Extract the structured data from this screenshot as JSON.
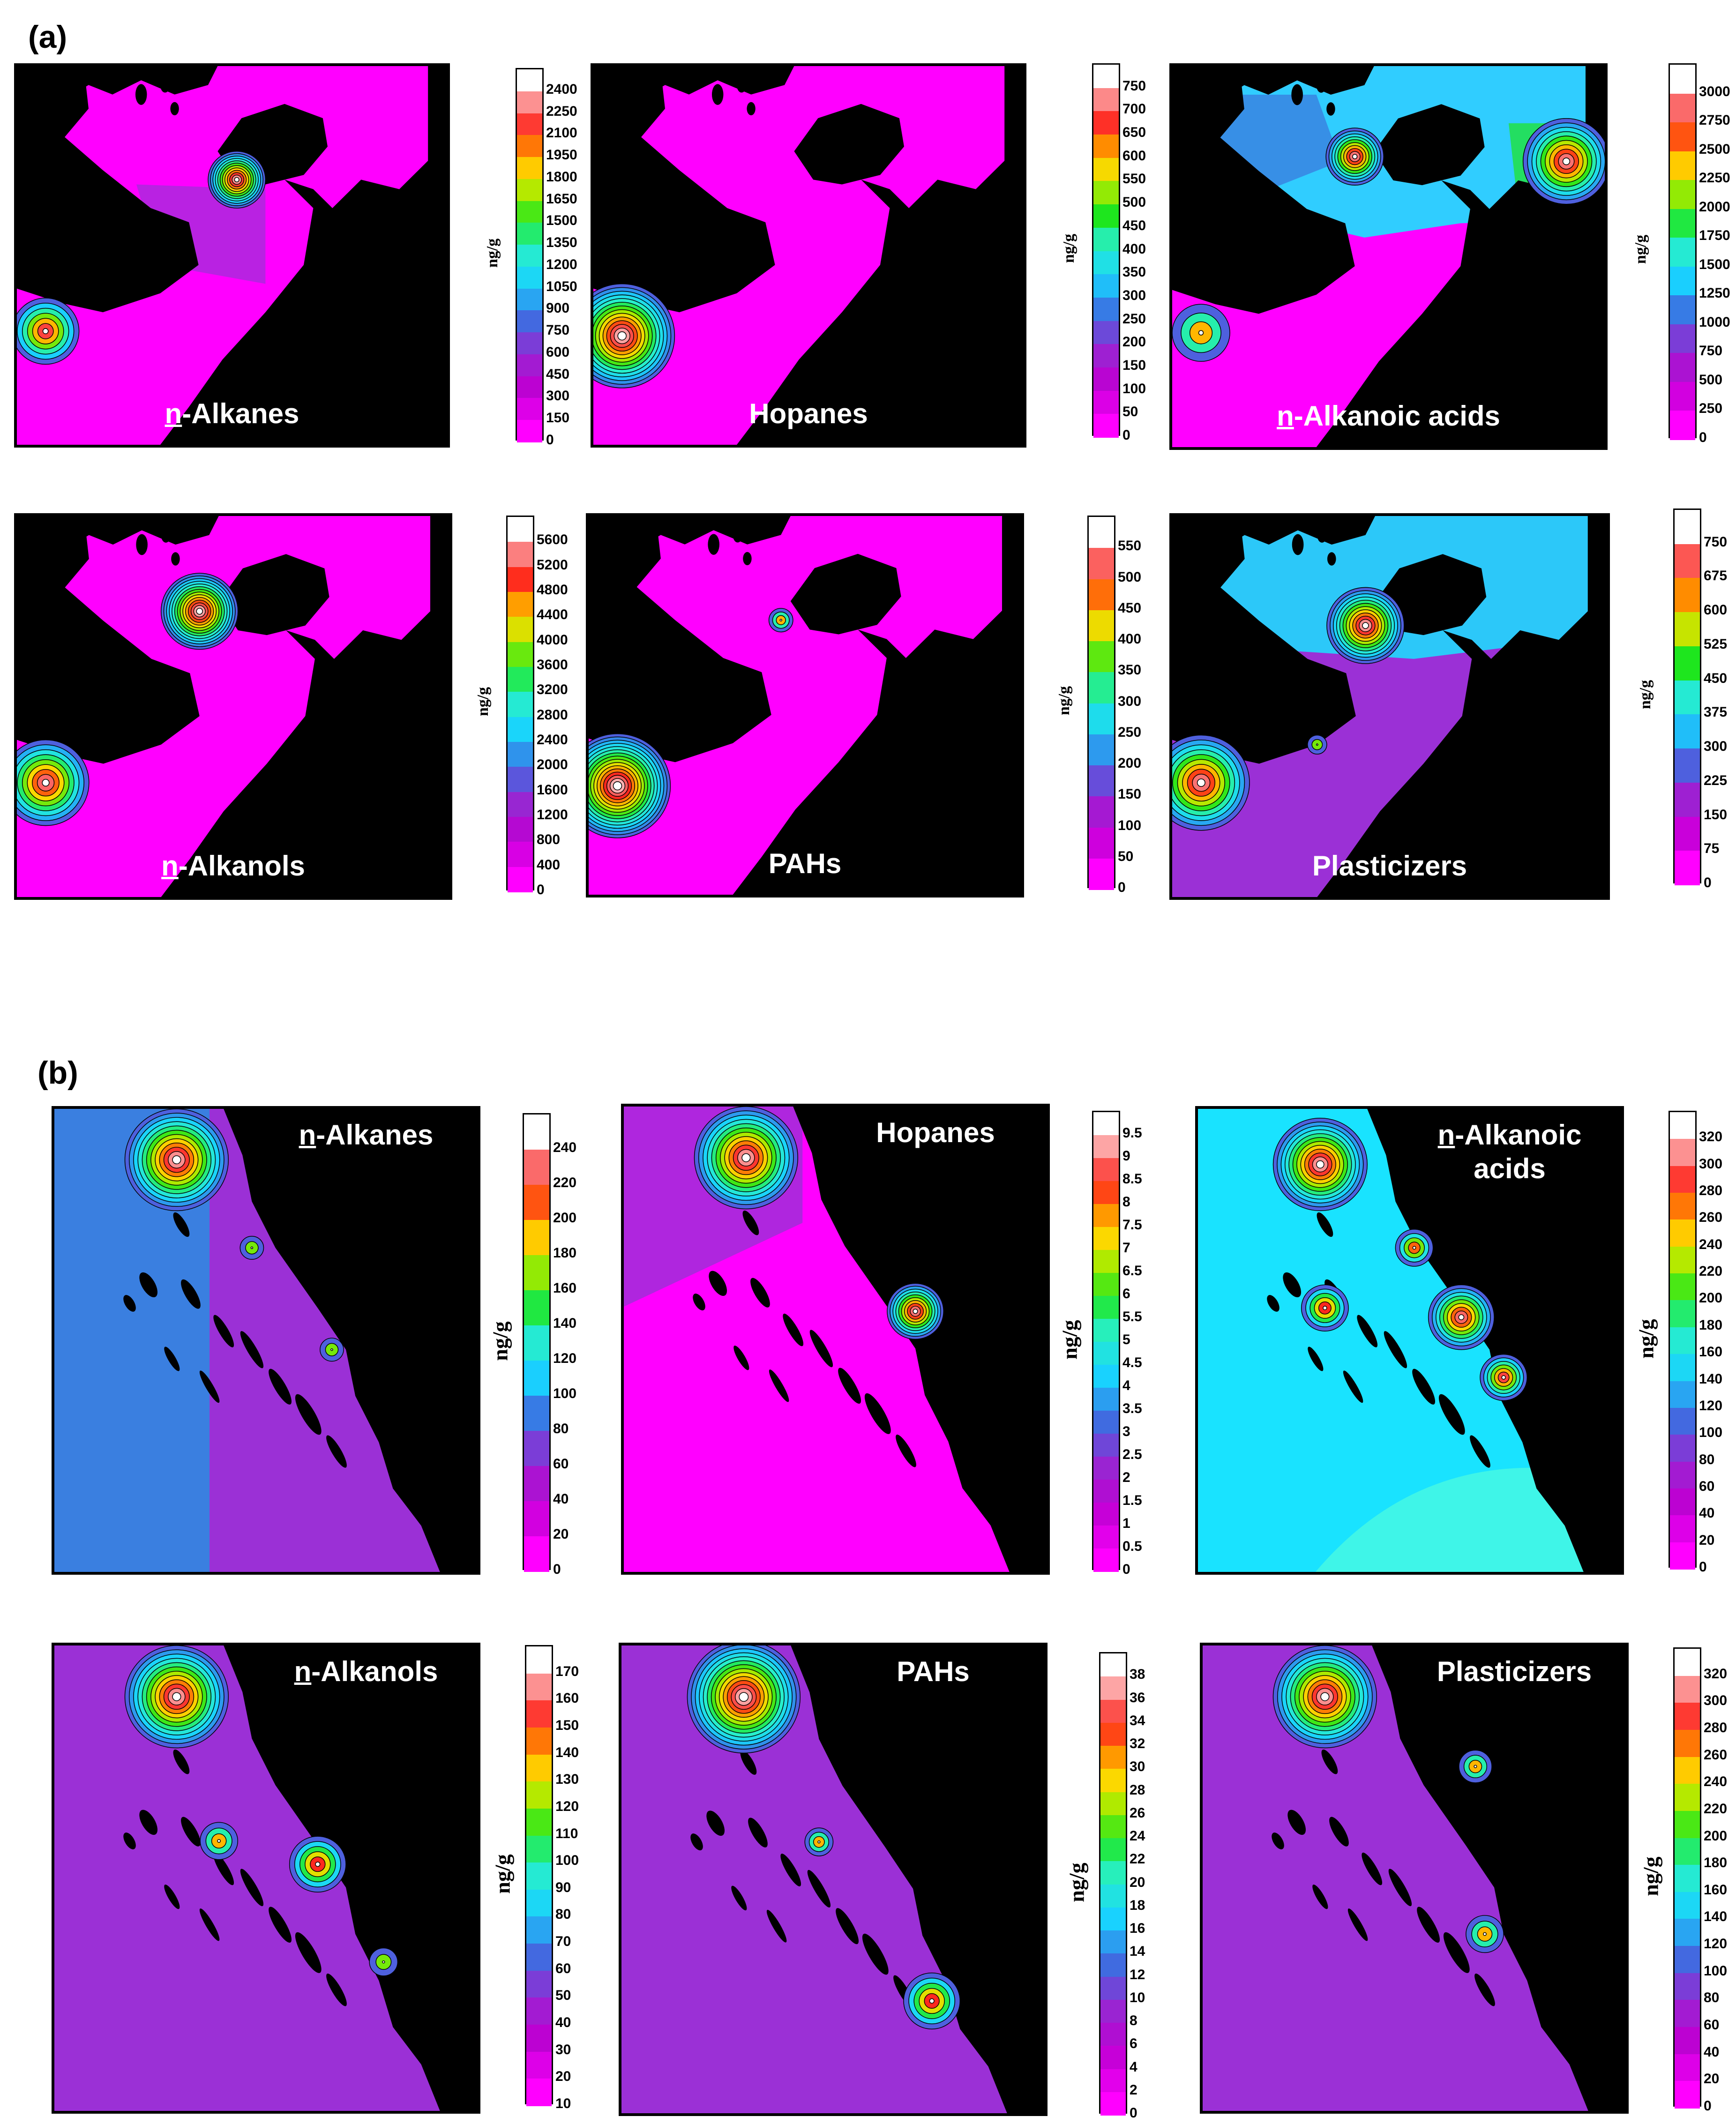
{
  "panel_a_label": "(a)",
  "panel_b_label": "(b)",
  "colors": {
    "land": "#000000",
    "low": "#ff00ff",
    "mid_purple": "#9b30d6",
    "blue": "#3a7fe0",
    "cyan": "#19e3ff",
    "green": "#1ee61e",
    "yellow": "#ffd700",
    "red": "#ff2a2a",
    "high": "#ffffff"
  },
  "maps_a": [
    {
      "prefix": "n",
      "rest": "-Alkanes",
      "unit": "ng/g",
      "ticks": [
        "2400",
        "2250",
        "2100",
        "1950",
        "1800",
        "1650",
        "1500",
        "1350",
        "1200",
        "1050",
        "900",
        "750",
        "600",
        "450",
        "300",
        "150",
        "0"
      ]
    },
    {
      "prefix": "",
      "rest": "Hopanes",
      "unit": "ng/g",
      "ticks": [
        "750",
        "700",
        "650",
        "600",
        "550",
        "500",
        "450",
        "400",
        "350",
        "300",
        "250",
        "200",
        "150",
        "100",
        "50",
        "0"
      ]
    },
    {
      "prefix": "n",
      "rest": "-Alkanoic acids",
      "unit": "ng/g",
      "ticks": [
        "3000",
        "2750",
        "2500",
        "2250",
        "2000",
        "1750",
        "1500",
        "1250",
        "1000",
        "750",
        "500",
        "250",
        "0"
      ]
    },
    {
      "prefix": "n",
      "rest": "-Alkanols",
      "unit": "ng/g",
      "ticks": [
        "5600",
        "5200",
        "4800",
        "4400",
        "4000",
        "3600",
        "3200",
        "2800",
        "2400",
        "2000",
        "1600",
        "1200",
        "800",
        "400",
        "0"
      ]
    },
    {
      "prefix": "",
      "rest": "PAHs",
      "unit": "ng/g",
      "ticks": [
        "550",
        "500",
        "450",
        "400",
        "350",
        "300",
        "250",
        "200",
        "150",
        "100",
        "50",
        "0"
      ]
    },
    {
      "prefix": "",
      "rest": "Plasticizers",
      "unit": "ng/g",
      "ticks": [
        "750",
        "675",
        "600",
        "525",
        "450",
        "375",
        "300",
        "225",
        "150",
        "75",
        "0"
      ]
    }
  ],
  "maps_b": [
    {
      "prefix": "n",
      "rest": "-Alkanes",
      "rest2": "",
      "unit": "ng/g",
      "ticks": [
        "240",
        "220",
        "200",
        "180",
        "160",
        "140",
        "120",
        "100",
        "80",
        "60",
        "40",
        "20",
        "0"
      ]
    },
    {
      "prefix": "",
      "rest": "Hopanes",
      "rest2": "",
      "unit": "ng/g",
      "ticks": [
        "9.5",
        "9",
        "8.5",
        "8",
        "7.5",
        "7",
        "6.5",
        "6",
        "5.5",
        "5",
        "4.5",
        "4",
        "3.5",
        "3",
        "2.5",
        "2",
        "1.5",
        "1",
        "0.5",
        "0"
      ]
    },
    {
      "prefix": "n",
      "rest": "-Alkanoic",
      "rest2": "acids",
      "unit": "ng/g",
      "ticks": [
        "320",
        "300",
        "280",
        "260",
        "240",
        "220",
        "200",
        "180",
        "160",
        "140",
        "120",
        "100",
        "80",
        "60",
        "40",
        "20",
        "0"
      ]
    },
    {
      "prefix": "n",
      "rest": "-Alkanols",
      "rest2": "",
      "unit": "ng/g",
      "ticks": [
        "170",
        "160",
        "150",
        "140",
        "130",
        "120",
        "110",
        "100",
        "90",
        "80",
        "70",
        "60",
        "50",
        "40",
        "30",
        "20",
        "10"
      ]
    },
    {
      "prefix": "",
      "rest": "PAHs",
      "rest2": "",
      "unit": "ng/g",
      "ticks": [
        "38",
        "36",
        "34",
        "32",
        "30",
        "28",
        "26",
        "24",
        "22",
        "20",
        "18",
        "16",
        "14",
        "12",
        "10",
        "8",
        "6",
        "4",
        "2",
        "0"
      ]
    },
    {
      "prefix": "",
      "rest": "Plasticizers",
      "rest2": "",
      "unit": "ng/g",
      "ticks": [
        "320",
        "300",
        "280",
        "260",
        "240",
        "220",
        "200",
        "180",
        "160",
        "140",
        "120",
        "100",
        "80",
        "60",
        "40",
        "20",
        "0"
      ]
    }
  ]
}
